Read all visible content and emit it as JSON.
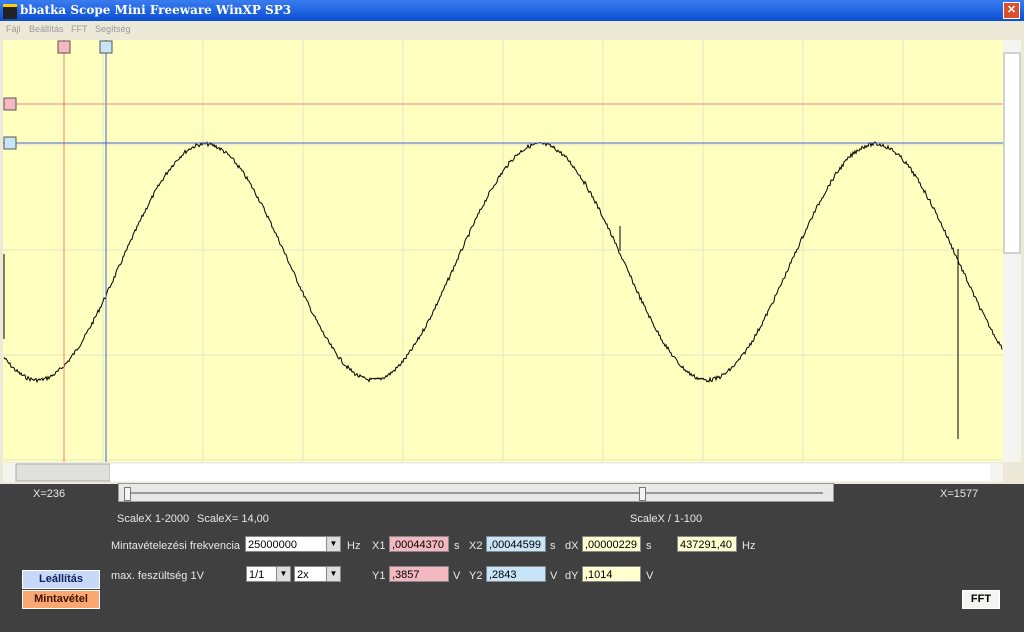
{
  "window": {
    "title": "bbatka Scope Mini Freeware WinXP SP3"
  },
  "menu": [
    "Fájl",
    "Beállítás",
    "FFT",
    "Segítség"
  ],
  "slider": {
    "left_label": "X=236",
    "right_label": "X=1577"
  },
  "scale": {
    "range": "ScaleX 1-2000",
    "value": "ScaleX= 14,00",
    "divider": "ScaleX / 1-100"
  },
  "sampling": {
    "label": "Mintavételezési frekvencia",
    "value": "25000000",
    "unit": "Hz"
  },
  "x_cursors": {
    "x1_label": "X1",
    "x1": ",00044370",
    "x1_unit": "s",
    "x2_label": "X2",
    "x2": ",00044599",
    "x2_unit": "s",
    "dx_label": "dX",
    "dx": ",00000229",
    "dx_unit": "s",
    "freq": "437291,40",
    "freq_unit": "Hz"
  },
  "voltage": {
    "label": "max. feszültség 1V",
    "divider": "1/1",
    "gain": "2x"
  },
  "y_cursors": {
    "y1_label": "Y1",
    "y1": ",3857",
    "y1_unit": "V",
    "y2_label": "Y2",
    "y2": ",2843",
    "y2_unit": "V",
    "dy_label": "dY",
    "dy": ",1014",
    "dy_unit": "V"
  },
  "buttons": {
    "stop": "Leállítás",
    "sample": "Mintavétel",
    "fft": "FFT"
  }
}
